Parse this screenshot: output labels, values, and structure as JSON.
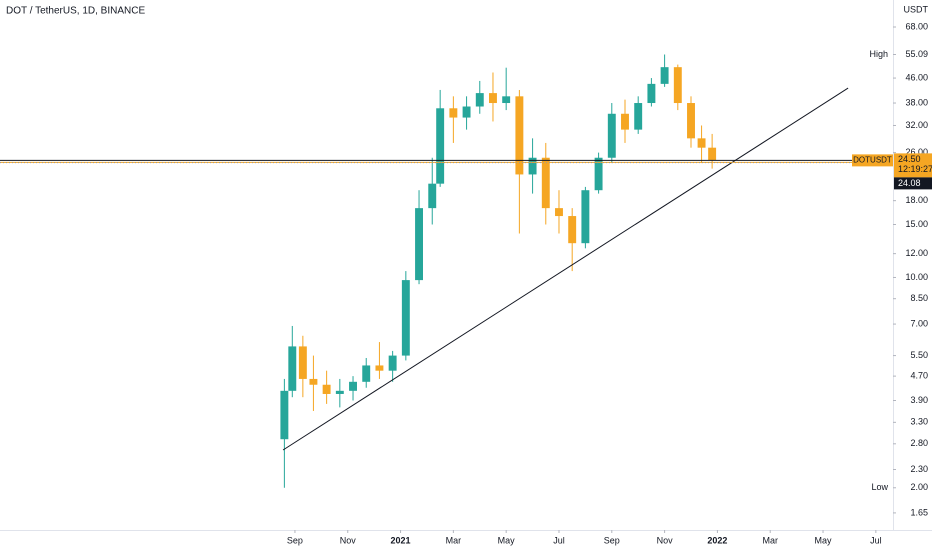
{
  "chart_data": {
    "type": "candlestick",
    "title": "DOT / TetherUS, 1D, BINANCE",
    "y_unit": "USDT",
    "log_scale": true,
    "up_color": "#26a69a",
    "down_color": "#f5a623",
    "xlim": [
      -11.17,
      22.65
    ],
    "xticks": [
      {
        "value": 0,
        "label": "Sep"
      },
      {
        "value": 2,
        "label": "Nov"
      },
      {
        "value": 4,
        "label": "2021"
      },
      {
        "value": 6,
        "label": "Mar"
      },
      {
        "value": 8,
        "label": "May"
      },
      {
        "value": 10,
        "label": "Jul"
      },
      {
        "value": 12,
        "label": "Sep"
      },
      {
        "value": 14,
        "label": "Nov"
      },
      {
        "value": 16,
        "label": "2022"
      },
      {
        "value": 18,
        "label": "Mar"
      },
      {
        "value": 20,
        "label": "May"
      },
      {
        "value": 22,
        "label": "Jul"
      }
    ],
    "ylim": [
      1.47,
      83.6
    ],
    "yticks": [
      {
        "value": 68,
        "label": "68.00"
      },
      {
        "value": 46,
        "label": "46.00"
      },
      {
        "value": 38,
        "label": "38.00"
      },
      {
        "value": 32,
        "label": "32.00"
      },
      {
        "value": 26,
        "label": "26.00"
      },
      {
        "value": 18,
        "label": "18.00"
      },
      {
        "value": 15,
        "label": "15.00"
      },
      {
        "value": 12,
        "label": "12.00"
      },
      {
        "value": 10,
        "label": "10.00"
      },
      {
        "value": 8.5,
        "label": "8.50"
      },
      {
        "value": 7,
        "label": "7.00"
      },
      {
        "value": 5.5,
        "label": "5.50"
      },
      {
        "value": 4.7,
        "label": "4.70"
      },
      {
        "value": 3.9,
        "label": "3.90"
      },
      {
        "value": 3.3,
        "label": "3.30"
      },
      {
        "value": 2.8,
        "label": "2.80"
      },
      {
        "value": 2.3,
        "label": "2.30"
      },
      {
        "value": 1.65,
        "label": "1.65"
      }
    ],
    "high": {
      "name": "High",
      "value": 55.09,
      "label": "55.09"
    },
    "low": {
      "name": "Low",
      "value": 2,
      "label": "2.00"
    },
    "last": {
      "symbol": "DOTUSDT",
      "value": 24.5,
      "label": "24.50",
      "countdown": "12:19:27"
    },
    "prev_close": {
      "value": 24.08,
      "label": "24.08"
    },
    "trendline": {
      "x": [
        -0.45,
        20.95
      ],
      "y": [
        2.67,
        42.6
      ],
      "color": "#131722"
    },
    "candles": {
      "x": [
        -0.4,
        -0.1,
        0.3,
        0.7,
        1.2,
        1.7,
        2.2,
        2.7,
        3.2,
        3.7,
        4.2,
        4.7,
        5.2,
        5.5,
        6.0,
        6.5,
        7.0,
        7.5,
        8.0,
        8.5,
        9.0,
        9.5,
        10.0,
        10.5,
        11.0,
        11.5,
        12.0,
        12.5,
        13.0,
        13.5,
        14.0,
        14.5,
        15.0,
        15.4,
        15.8
      ],
      "open": [
        2.9,
        4.2,
        5.9,
        4.6,
        4.4,
        4.1,
        4.2,
        4.5,
        5.1,
        4.9,
        5.5,
        9.8,
        17.0,
        20.5,
        36.5,
        34.0,
        37.0,
        41.0,
        38.0,
        40.0,
        22.0,
        25.0,
        17.0,
        16.0,
        13.0,
        19.5,
        25.0,
        35.0,
        31.0,
        38.0,
        44.0,
        50.0,
        38.0,
        29.0,
        27.0
      ],
      "high": [
        4.6,
        6.9,
        6.4,
        5.5,
        4.9,
        4.6,
        4.7,
        5.4,
        6.1,
        5.7,
        10.5,
        19.5,
        25.0,
        42.0,
        40.0,
        40.0,
        45.0,
        48.0,
        49.8,
        42.0,
        29.0,
        28.0,
        19.5,
        17.0,
        20.0,
        26.0,
        38.0,
        39.0,
        40.0,
        46.0,
        55.09,
        51.0,
        40.0,
        32.0,
        30.0
      ],
      "low": [
        2.0,
        4.0,
        4.0,
        3.6,
        3.8,
        3.7,
        3.9,
        4.3,
        4.6,
        4.5,
        5.3,
        9.5,
        15.0,
        20.0,
        28.0,
        31.0,
        35.0,
        33.0,
        36.0,
        14.0,
        19.0,
        15.0,
        14.0,
        10.5,
        12.5,
        19.0,
        24.0,
        28.0,
        30.0,
        37.0,
        43.0,
        36.0,
        27.0,
        24.0,
        23.0
      ],
      "close": [
        4.2,
        5.9,
        4.6,
        4.4,
        4.1,
        4.2,
        4.5,
        5.1,
        4.9,
        5.5,
        9.8,
        17.0,
        20.5,
        36.5,
        34.0,
        37.0,
        41.0,
        38.0,
        40.0,
        22.0,
        25.0,
        17.0,
        16.0,
        13.0,
        19.5,
        25.0,
        35.0,
        31.0,
        38.0,
        44.0,
        50.0,
        38.0,
        29.0,
        27.0,
        24.5
      ]
    }
  }
}
